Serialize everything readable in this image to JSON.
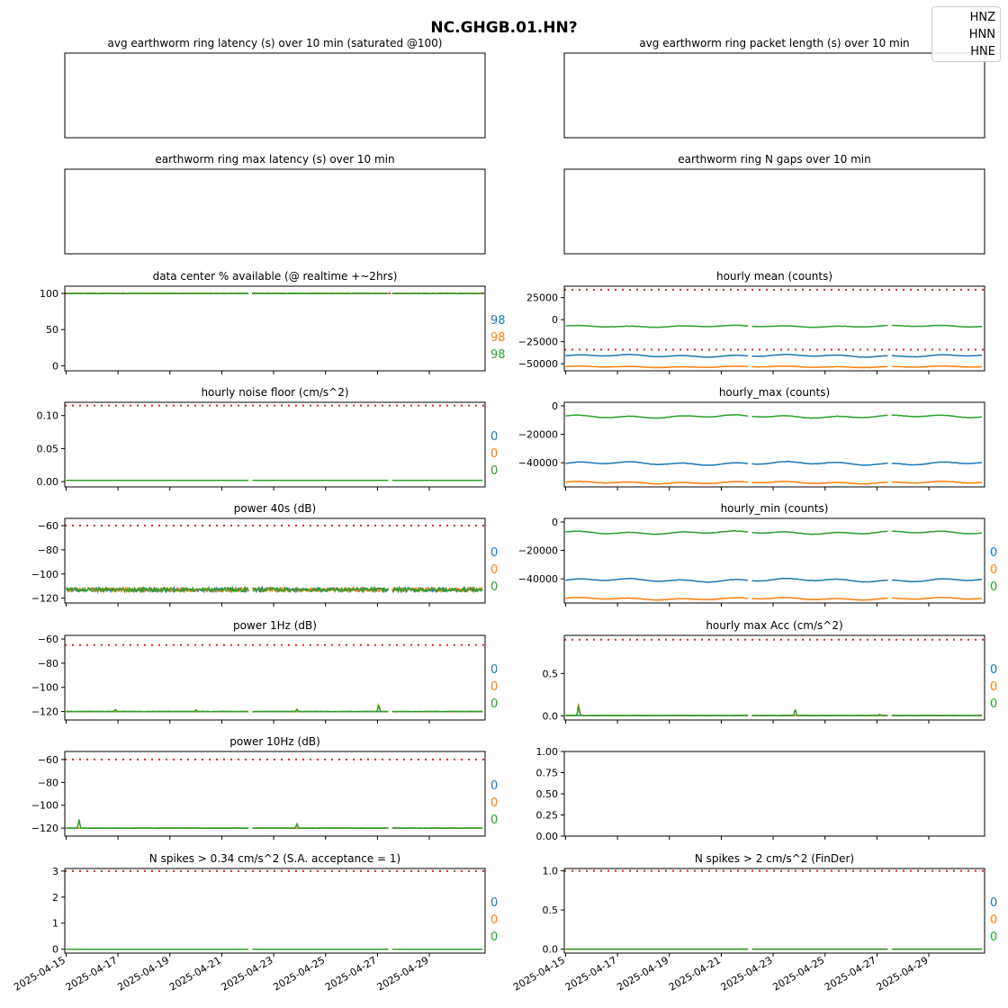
{
  "figure_title": "NC.GHGB.01.HN?",
  "legend": {
    "entries": [
      "HNZ",
      "HNN",
      "HNE"
    ]
  },
  "colors": {
    "HNZ": "#1f77b4",
    "HNN": "#ff7f0e",
    "HNE": "#2ca02c",
    "threshold": "#d62728"
  },
  "chart_data": [
    {
      "id": "avg-latency",
      "type": "line",
      "title": "avg earthworm ring latency (s)   over 10 min (saturated @100)",
      "x_tick_labels": [],
      "y_tick_labels": [],
      "series": [],
      "side_values": []
    },
    {
      "id": "avg-packet",
      "type": "line",
      "title": "avg earthworm ring packet length (s)   over 10 min",
      "x_tick_labels": [],
      "y_tick_labels": [],
      "series": [],
      "side_values": []
    },
    {
      "id": "max-latency",
      "type": "line",
      "title": "earthworm ring max latency (s)   over 10 min",
      "x_tick_labels": [],
      "y_tick_labels": [],
      "series": [],
      "side_values": []
    },
    {
      "id": "n-gaps",
      "type": "line",
      "title": "earthworm ring N gaps   over 10 min",
      "x_tick_labels": [],
      "y_tick_labels": [],
      "series": [],
      "side_values": []
    },
    {
      "id": "pct-available",
      "type": "line",
      "title": "data center % available (@ realtime +~2hrs)",
      "ylim": [
        -7,
        110
      ],
      "y_ticks": [
        0,
        50,
        100
      ],
      "y_tick_labels": [
        "0",
        "50",
        "100"
      ],
      "x_tick_labels": [],
      "threshold": 100,
      "series": [
        {
          "channel": "HNZ",
          "level": 100,
          "noise": 0.3
        },
        {
          "channel": "HNN",
          "level": 100,
          "noise": 0.3
        },
        {
          "channel": "HNE",
          "level": 100,
          "noise": 0.3
        }
      ],
      "side_values": [
        "98",
        "98",
        "98"
      ]
    },
    {
      "id": "hourly-mean",
      "type": "line",
      "title": "hourly mean (counts)",
      "ylim": [
        -58000,
        38000
      ],
      "y_ticks": [
        -50000,
        -25000,
        0,
        25000
      ],
      "y_tick_labels": [
        "−50000",
        "−25000",
        "0",
        "25000"
      ],
      "x_tick_labels": [],
      "thresholds": [
        34000,
        -34000
      ],
      "series": [
        {
          "channel": "HNZ",
          "level": -41000,
          "wave": 1200,
          "noise": 150
        },
        {
          "channel": "HNN",
          "level": -53500,
          "wave": 700,
          "noise": 150
        },
        {
          "channel": "HNE",
          "level": -7500,
          "wave": 900,
          "noise": 150
        }
      ],
      "side_values": []
    },
    {
      "id": "noise-floor",
      "type": "line",
      "title": "hourly noise floor (cm/s^2)",
      "ylim": [
        -0.008,
        0.12
      ],
      "y_ticks": [
        0,
        0.05,
        0.1
      ],
      "y_tick_labels": [
        "0.00",
        "0.05",
        "0.10"
      ],
      "x_tick_labels": [],
      "threshold": 0.115,
      "series": [
        {
          "channel": "HNZ",
          "level": 0.002,
          "noise": 0
        },
        {
          "channel": "HNN",
          "level": 0.002,
          "noise": 0
        },
        {
          "channel": "HNE",
          "level": 0.002,
          "noise": 0
        }
      ],
      "side_values": [
        "0",
        "0",
        "0"
      ]
    },
    {
      "id": "hourly-max",
      "type": "line",
      "title": "hourly_max (counts)",
      "ylim": [
        -57000,
        2500
      ],
      "y_ticks": [
        -40000,
        -20000,
        0
      ],
      "y_tick_labels": [
        "−40000",
        "−20000",
        "0"
      ],
      "x_tick_labels": [],
      "series": [
        {
          "channel": "HNZ",
          "level": -40500,
          "wave": 1000,
          "noise": 120
        },
        {
          "channel": "HNN",
          "level": -54000,
          "wave": 700,
          "noise": 120
        },
        {
          "channel": "HNE",
          "level": -7500,
          "wave": 900,
          "noise": 120
        }
      ],
      "side_values": []
    },
    {
      "id": "power-40s",
      "type": "line",
      "title": "power 40s (dB)",
      "ylim": [
        -124,
        -54
      ],
      "y_ticks": [
        -120,
        -100,
        -80,
        -60
      ],
      "y_tick_labels": [
        "−120",
        "−100",
        "−80",
        "−60"
      ],
      "x_tick_labels": [],
      "threshold": -60,
      "series": [
        {
          "channel": "HNZ",
          "level": -113,
          "noise": 1.6
        },
        {
          "channel": "HNN",
          "level": -113,
          "noise": 1.6
        },
        {
          "channel": "HNE",
          "level": -113,
          "noise": 1.6
        }
      ],
      "side_values": [
        "0",
        "0",
        "0"
      ]
    },
    {
      "id": "hourly-min",
      "type": "line",
      "title": "hourly_min (counts)",
      "ylim": [
        -57000,
        2500
      ],
      "y_ticks": [
        -40000,
        -20000,
        0
      ],
      "y_tick_labels": [
        "−40000",
        "−20000",
        "0"
      ],
      "x_tick_labels": [],
      "series": [
        {
          "channel": "HNZ",
          "level": -41000,
          "wave": 1000,
          "noise": 120
        },
        {
          "channel": "HNN",
          "level": -54000,
          "wave": 700,
          "noise": 120
        },
        {
          "channel": "HNE",
          "level": -7500,
          "wave": 900,
          "noise": 120
        }
      ],
      "side_values": [
        "0",
        "0",
        "0"
      ]
    },
    {
      "id": "power-1hz",
      "type": "line",
      "title": "power 1Hz (dB)",
      "ylim": [
        -127,
        -57
      ],
      "y_ticks": [
        -120,
        -100,
        -80,
        -60
      ],
      "y_tick_labels": [
        "−120",
        "−100",
        "−80",
        "−60"
      ],
      "x_tick_labels": [],
      "threshold": -65,
      "series": [
        {
          "channel": "HNZ",
          "level": -120,
          "noise": 0.15
        },
        {
          "channel": "HNN",
          "level": -120,
          "noise": 0.15,
          "spikes": [
            [
              12.05,
              -113
            ]
          ]
        },
        {
          "channel": "HNE",
          "level": -120,
          "noise": 0.15,
          "spikes": [
            [
              1.9,
              -118
            ],
            [
              5.0,
              -118.5
            ],
            [
              8.9,
              -118
            ],
            [
              12.05,
              -114
            ]
          ]
        }
      ],
      "side_values": [
        "0",
        "0",
        "0"
      ]
    },
    {
      "id": "hourly-max-acc",
      "type": "line",
      "title": "hourly max Acc (cm/s^2)",
      "ylim": [
        -0.05,
        0.95
      ],
      "y_ticks": [
        0,
        0.5
      ],
      "y_tick_labels": [
        "0.0",
        "0.5"
      ],
      "x_tick_labels": [],
      "threshold": 0.9,
      "series": [
        {
          "channel": "HNZ",
          "level": 0.003,
          "noise": 0.002
        },
        {
          "channel": "HNN",
          "level": 0.003,
          "noise": 0.002,
          "spikes": [
            [
              0.5,
              0.15
            ]
          ]
        },
        {
          "channel": "HNE",
          "level": 0.003,
          "noise": 0.002,
          "spikes": [
            [
              0.5,
              0.12
            ],
            [
              8.85,
              0.09
            ],
            [
              12.1,
              0.02
            ]
          ]
        }
      ],
      "side_values": [
        "0",
        "0",
        "0"
      ]
    },
    {
      "id": "power-10hz",
      "type": "line",
      "title": "power 10Hz (dB)",
      "ylim": [
        -127,
        -53
      ],
      "y_ticks": [
        -120,
        -100,
        -80,
        -60
      ],
      "y_tick_labels": [
        "−120",
        "−100",
        "−80",
        "−60"
      ],
      "x_tick_labels": [],
      "threshold": -60,
      "series": [
        {
          "channel": "HNZ",
          "level": -120,
          "noise": 0.1
        },
        {
          "channel": "HNN",
          "level": -120,
          "noise": 0.1
        },
        {
          "channel": "HNE",
          "level": -120,
          "noise": 0.1,
          "spikes": [
            [
              0.5,
              -112
            ],
            [
              8.9,
              -116
            ]
          ]
        }
      ],
      "side_values": [
        "0",
        "0",
        "0"
      ]
    },
    {
      "id": "empty-panel",
      "type": "line",
      "title": "",
      "ylim": [
        0,
        1
      ],
      "y_ticks": [
        0,
        0.25,
        0.5,
        0.75,
        1
      ],
      "y_tick_labels": [
        "0.00",
        "0.25",
        "0.50",
        "0.75",
        "1.00"
      ],
      "x_tick_labels": [],
      "series": [],
      "side_values": []
    },
    {
      "id": "spikes-034",
      "type": "line",
      "title": "N spikes > 0.34 cm/s^2 (S.A. acceptance = 1)",
      "ylim": [
        -0.15,
        3.1
      ],
      "y_ticks": [
        0,
        1,
        2,
        3
      ],
      "y_tick_labels": [
        "0",
        "1",
        "2",
        "3"
      ],
      "threshold": 3,
      "x_tick_labels": [
        "2025-04-15",
        "2025-04-17",
        "2025-04-19",
        "2025-04-21",
        "2025-04-23",
        "2025-04-25",
        "2025-04-27",
        "2025-04-29"
      ],
      "series": [
        {
          "channel": "HNZ",
          "level": 0,
          "noise": 0
        },
        {
          "channel": "HNN",
          "level": 0,
          "noise": 0
        },
        {
          "channel": "HNE",
          "level": 0,
          "noise": 0
        }
      ],
      "side_values": [
        "0",
        "0",
        "0"
      ]
    },
    {
      "id": "spikes-2",
      "type": "line",
      "title": "N spikes > 2 cm/s^2 (FinDer)",
      "ylim": [
        -0.05,
        1.03
      ],
      "y_ticks": [
        0,
        0.5,
        1
      ],
      "y_tick_labels": [
        "0.0",
        "0.5",
        "1.0"
      ],
      "threshold": 1,
      "x_tick_labels": [
        "2025-04-15",
        "2025-04-17",
        "2025-04-19",
        "2025-04-21",
        "2025-04-23",
        "2025-04-25",
        "2025-04-27",
        "2025-04-29"
      ],
      "series": [
        {
          "channel": "HNZ",
          "level": 0,
          "noise": 0
        },
        {
          "channel": "HNN",
          "level": 0,
          "noise": 0
        },
        {
          "channel": "HNE",
          "level": 0,
          "noise": 0
        }
      ],
      "side_values": [
        "0",
        "0",
        "0"
      ]
    }
  ]
}
